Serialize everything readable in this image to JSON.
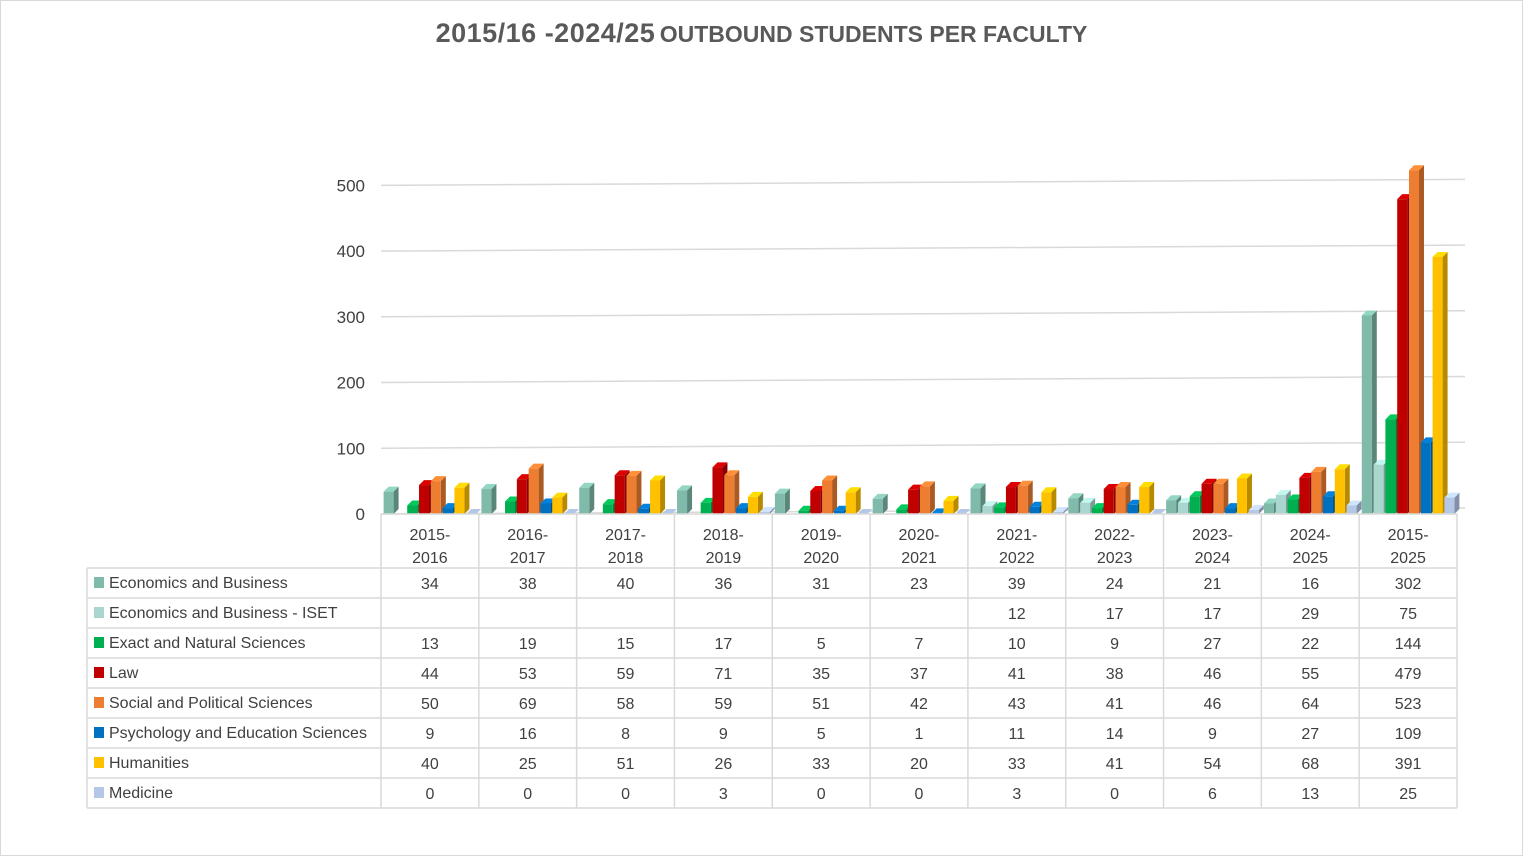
{
  "chart_data": {
    "type": "bar",
    "title_part1": "2015/16 -2024/25",
    "title_part2": "OUTBOUND STUDENTS PER FACULTY",
    "categories": [
      "2015-\n2016",
      "2016-\n2017",
      "2017-\n2018",
      "2018-\n2019",
      "2019-\n2020",
      "2020-\n2021",
      "2021-\n2022",
      "2022-\n2023",
      "2023-\n2024",
      "2024-\n2025",
      "2015-\n2025"
    ],
    "ylim": [
      0,
      500
    ],
    "yticks": [
      "0",
      "100",
      "200",
      "300",
      "400",
      "500"
    ],
    "grid": true,
    "legend": "data-table",
    "series": [
      {
        "name": "Economics and Business",
        "color": "#7fbaaa",
        "values": [
          34,
          38,
          40,
          36,
          31,
          23,
          39,
          24,
          21,
          16,
          302
        ]
      },
      {
        "name": "Economics and Business - ISET",
        "color": "#a9d6cf",
        "values": [
          null,
          null,
          null,
          null,
          null,
          null,
          12,
          17,
          17,
          29,
          75
        ]
      },
      {
        "name": "Exact and Natural Sciences",
        "color": "#00b050",
        "values": [
          13,
          19,
          15,
          17,
          5,
          7,
          10,
          9,
          27,
          22,
          144
        ]
      },
      {
        "name": "Law",
        "color": "#c00000",
        "values": [
          44,
          53,
          59,
          71,
          35,
          37,
          41,
          38,
          46,
          55,
          479
        ]
      },
      {
        "name": "Social and Political Sciences",
        "color": "#ed7d31",
        "values": [
          50,
          69,
          58,
          59,
          51,
          42,
          43,
          41,
          46,
          64,
          523
        ]
      },
      {
        "name": "Psychology and Education Sciences",
        "color": "#0070c0",
        "values": [
          9,
          16,
          8,
          9,
          5,
          1,
          11,
          14,
          9,
          27,
          109
        ]
      },
      {
        "name": "Humanities",
        "color": "#ffc000",
        "values": [
          40,
          25,
          51,
          26,
          33,
          20,
          33,
          41,
          54,
          68,
          391
        ]
      },
      {
        "name": "Medicine",
        "color": "#b4c7e7",
        "values": [
          0,
          0,
          0,
          3,
          0,
          0,
          3,
          0,
          6,
          13,
          25
        ]
      }
    ]
  }
}
